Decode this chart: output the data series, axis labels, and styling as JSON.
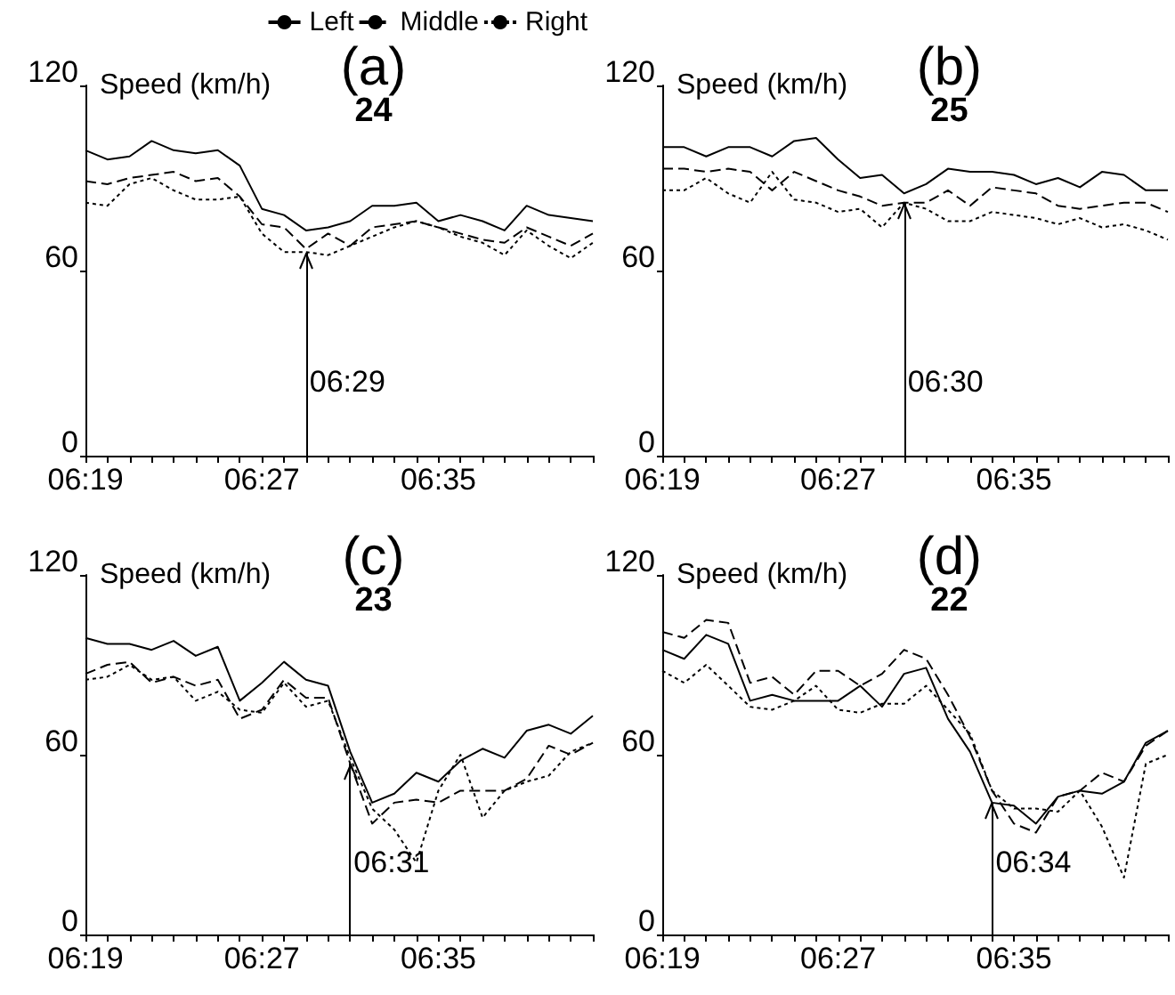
{
  "chart_data": [
    {
      "type": "line",
      "title": "(a)",
      "subtitle": "24",
      "ylabel": "Speed (km/h)",
      "legend": "top",
      "marker": "none",
      "grid": false,
      "x": [
        6.3167,
        6.3333,
        6.35,
        6.3667,
        6.3833,
        6.4,
        6.4167,
        6.4333,
        6.45,
        6.4667,
        6.4833,
        6.5,
        6.5167,
        6.5333,
        6.55,
        6.5667,
        6.5833,
        6.6,
        6.6167,
        6.6333,
        6.65,
        6.6667,
        6.6833,
        6.7
      ],
      "xlim": [
        6.3167,
        6.7
      ],
      "xticks": [
        {
          "value": 6.3167,
          "label": "06:19"
        },
        {
          "value": 6.3333,
          "label": null
        },
        {
          "value": 6.35,
          "label": null
        },
        {
          "value": 6.3667,
          "label": null
        },
        {
          "value": 6.3833,
          "label": null
        },
        {
          "value": 6.4,
          "label": null
        },
        {
          "value": 6.4167,
          "label": null
        },
        {
          "value": 6.4333,
          "label": null
        },
        {
          "value": 6.45,
          "label": "06:27"
        },
        {
          "value": 6.4667,
          "label": null
        },
        {
          "value": 6.4833,
          "label": null
        },
        {
          "value": 6.5,
          "label": null
        },
        {
          "value": 6.5167,
          "label": null
        },
        {
          "value": 6.5333,
          "label": null
        },
        {
          "value": 6.55,
          "label": null
        },
        {
          "value": 6.5667,
          "label": null
        },
        {
          "value": 6.5833,
          "label": "06:35"
        },
        {
          "value": 6.6,
          "label": null
        },
        {
          "value": 6.6167,
          "label": null
        },
        {
          "value": 6.6333,
          "label": null
        },
        {
          "value": 6.65,
          "label": null
        },
        {
          "value": 6.6667,
          "label": null
        },
        {
          "value": 6.6833,
          "label": null
        },
        {
          "value": 6.7,
          "label": null
        }
      ],
      "ylim": [
        0,
        120
      ],
      "yticks": [
        0,
        60,
        120
      ],
      "ref_lines": [
        {
          "axis": "x",
          "value": 6.4833,
          "label": "06:29"
        }
      ],
      "series": [
        {
          "name": "Left",
          "color": "#000000",
          "line_style": "solid",
          "values": [
            99,
            96,
            97,
            102,
            99,
            98,
            99,
            94,
            80,
            78,
            73,
            74,
            76,
            81,
            81,
            82,
            76,
            78,
            76,
            73,
            81,
            78,
            77,
            76
          ]
        },
        {
          "name": "Middle",
          "color": "#000000",
          "line_style": "dashed",
          "values": [
            89,
            88,
            90,
            91,
            92,
            89,
            90,
            84,
            75,
            74,
            67,
            72,
            68,
            74,
            75,
            76,
            74,
            72,
            70,
            69,
            74,
            71,
            68,
            72
          ]
        },
        {
          "name": "Right",
          "color": "#000000",
          "line_style": "dotted",
          "values": [
            82,
            81,
            88,
            90,
            86,
            83,
            83,
            84,
            72,
            66,
            66,
            65,
            68,
            71,
            74,
            76,
            74,
            71,
            69,
            65,
            73,
            68,
            64,
            69
          ]
        }
      ]
    },
    {
      "type": "line",
      "title": "(b)",
      "subtitle": "25",
      "ylabel": "Speed (km/h)",
      "marker": "none",
      "grid": false,
      "x": [
        6.3167,
        6.3333,
        6.35,
        6.3667,
        6.3833,
        6.4,
        6.4167,
        6.4333,
        6.45,
        6.4667,
        6.4833,
        6.5,
        6.5167,
        6.5333,
        6.55,
        6.5667,
        6.5833,
        6.6,
        6.6167,
        6.6333,
        6.65,
        6.6667,
        6.6833,
        6.7
      ],
      "xlim": [
        6.3167,
        6.7
      ],
      "xticks": [
        {
          "value": 6.3167,
          "label": "06:19"
        },
        {
          "value": 6.3333,
          "label": null
        },
        {
          "value": 6.35,
          "label": null
        },
        {
          "value": 6.3667,
          "label": null
        },
        {
          "value": 6.3833,
          "label": null
        },
        {
          "value": 6.4,
          "label": null
        },
        {
          "value": 6.4167,
          "label": null
        },
        {
          "value": 6.4333,
          "label": null
        },
        {
          "value": 6.45,
          "label": "06:27"
        },
        {
          "value": 6.4667,
          "label": null
        },
        {
          "value": 6.4833,
          "label": null
        },
        {
          "value": 6.5,
          "label": null
        },
        {
          "value": 6.5167,
          "label": null
        },
        {
          "value": 6.5333,
          "label": null
        },
        {
          "value": 6.55,
          "label": null
        },
        {
          "value": 6.5667,
          "label": null
        },
        {
          "value": 6.5833,
          "label": "06:35"
        },
        {
          "value": 6.6,
          "label": null
        },
        {
          "value": 6.6167,
          "label": null
        },
        {
          "value": 6.6333,
          "label": null
        },
        {
          "value": 6.65,
          "label": null
        },
        {
          "value": 6.6667,
          "label": null
        },
        {
          "value": 6.6833,
          "label": null
        },
        {
          "value": 6.7,
          "label": null
        }
      ],
      "ylim": [
        0,
        120
      ],
      "yticks": [
        0,
        60,
        120
      ],
      "ref_lines": [
        {
          "axis": "x",
          "value": 6.5,
          "label": "06:30"
        }
      ],
      "series": [
        {
          "color": "#000000",
          "line_style": "solid",
          "values": [
            100,
            100,
            97,
            100,
            100,
            97,
            102,
            103,
            96,
            90,
            91,
            85,
            88,
            93,
            92,
            92,
            91,
            88,
            90,
            87,
            92,
            91,
            86,
            86
          ]
        },
        {
          "color": "#000000",
          "line_style": "dashed",
          "values": [
            93,
            93,
            92,
            93,
            92,
            86,
            92,
            89,
            86,
            84,
            81,
            82,
            82,
            86,
            81,
            87,
            86,
            85,
            81,
            80,
            81,
            82,
            82,
            79
          ]
        },
        {
          "color": "#000000",
          "line_style": "dotted",
          "values": [
            86,
            86,
            90,
            85,
            82,
            92,
            83,
            82,
            79,
            80,
            74,
            82,
            80,
            76,
            76,
            79,
            78,
            77,
            75,
            77,
            74,
            75,
            73,
            70
          ]
        }
      ]
    },
    {
      "type": "line",
      "title": "(c)",
      "subtitle": "23",
      "ylabel": "Speed (km/h)",
      "marker": "none",
      "grid": false,
      "x": [
        6.3167,
        6.3333,
        6.35,
        6.3667,
        6.3833,
        6.4,
        6.4167,
        6.4333,
        6.45,
        6.4667,
        6.4833,
        6.5,
        6.5167,
        6.5333,
        6.55,
        6.5667,
        6.5833,
        6.6,
        6.6167,
        6.6333,
        6.65,
        6.6667,
        6.6833,
        6.7
      ],
      "xlim": [
        6.3167,
        6.7
      ],
      "xticks": [
        {
          "value": 6.3167,
          "label": "06:19"
        },
        {
          "value": 6.3333,
          "label": null
        },
        {
          "value": 6.35,
          "label": null
        },
        {
          "value": 6.3667,
          "label": null
        },
        {
          "value": 6.3833,
          "label": null
        },
        {
          "value": 6.4,
          "label": null
        },
        {
          "value": 6.4167,
          "label": null
        },
        {
          "value": 6.4333,
          "label": null
        },
        {
          "value": 6.45,
          "label": "06:27"
        },
        {
          "value": 6.4667,
          "label": null
        },
        {
          "value": 6.4833,
          "label": null
        },
        {
          "value": 6.5,
          "label": null
        },
        {
          "value": 6.5167,
          "label": null
        },
        {
          "value": 6.5333,
          "label": null
        },
        {
          "value": 6.55,
          "label": null
        },
        {
          "value": 6.5667,
          "label": null
        },
        {
          "value": 6.5833,
          "label": "06:35"
        },
        {
          "value": 6.6,
          "label": null
        },
        {
          "value": 6.6167,
          "label": null
        },
        {
          "value": 6.6333,
          "label": null
        },
        {
          "value": 6.65,
          "label": null
        },
        {
          "value": 6.6667,
          "label": null
        },
        {
          "value": 6.6833,
          "label": null
        },
        {
          "value": 6.7,
          "label": null
        }
      ],
      "ylim": [
        0,
        120
      ],
      "yticks": [
        0,
        60,
        120
      ],
      "ref_lines": [
        {
          "axis": "x",
          "value": 6.516667
        }
      ],
      "annotations": [
        "06:31"
      ],
      "series": [
        {
          "color": "#000000",
          "line_style": "solid",
          "values": [
            99,
            97,
            97,
            95,
            98,
            93,
            96,
            78,
            84,
            91,
            85,
            83,
            61,
            44,
            47,
            54,
            51,
            58,
            62,
            59,
            68,
            70,
            67,
            73
          ]
        },
        {
          "color": "#000000",
          "line_style": "dashed",
          "values": [
            87,
            90,
            91,
            84,
            86,
            83,
            85,
            72,
            75,
            85,
            79,
            79,
            57,
            37,
            44,
            45,
            44,
            48,
            48,
            48,
            52,
            63,
            60,
            64
          ]
        },
        {
          "color": "#000000",
          "line_style": "dotted",
          "values": [
            85,
            86,
            90,
            85,
            86,
            78,
            81,
            75,
            74,
            84,
            76,
            78,
            59,
            42,
            35,
            24,
            48,
            60,
            39,
            48,
            51,
            53,
            61,
            64
          ]
        }
      ]
    },
    {
      "type": "line",
      "title": "(d)",
      "subtitle": "22",
      "ylabel": "Speed (km/h)",
      "marker": "none",
      "grid": false,
      "x": [
        6.3167,
        6.3333,
        6.35,
        6.3667,
        6.3833,
        6.4,
        6.4167,
        6.4333,
        6.45,
        6.4667,
        6.4833,
        6.5,
        6.5167,
        6.5333,
        6.55,
        6.5667,
        6.5833,
        6.6,
        6.6167,
        6.6333,
        6.65,
        6.6667,
        6.6833,
        6.7
      ],
      "xlim": [
        6.3167,
        6.7
      ],
      "xticks": [
        {
          "value": 6.3167,
          "label": "06:19"
        },
        {
          "value": 6.3333,
          "label": null
        },
        {
          "value": 6.35,
          "label": null
        },
        {
          "value": 6.3667,
          "label": null
        },
        {
          "value": 6.3833,
          "label": null
        },
        {
          "value": 6.4,
          "label": null
        },
        {
          "value": 6.4167,
          "label": null
        },
        {
          "value": 6.4333,
          "label": null
        },
        {
          "value": 6.45,
          "label": "06:27"
        },
        {
          "value": 6.4667,
          "label": null
        },
        {
          "value": 6.4833,
          "label": null
        },
        {
          "value": 6.5,
          "label": null
        },
        {
          "value": 6.5167,
          "label": null
        },
        {
          "value": 6.5333,
          "label": null
        },
        {
          "value": 6.55,
          "label": null
        },
        {
          "value": 6.5667,
          "label": null
        },
        {
          "value": 6.5833,
          "label": "06:35"
        },
        {
          "value": 6.6,
          "label": null
        },
        {
          "value": 6.6167,
          "label": null
        },
        {
          "value": 6.6333,
          "label": null
        },
        {
          "value": 6.65,
          "label": null
        },
        {
          "value": 6.6667,
          "label": null
        },
        {
          "value": 6.6833,
          "label": null
        },
        {
          "value": 6.7,
          "label": null
        }
      ],
      "ylim": [
        0,
        120
      ],
      "yticks": [
        0,
        60,
        120
      ],
      "ref_lines": [
        {
          "axis": "x",
          "value": 6.566667
        }
      ],
      "annotations": [
        "06:34"
      ],
      "series": [
        {
          "color": "#000000",
          "line_style": "solid",
          "values": [
            95,
            92,
            100,
            97,
            78,
            80,
            78,
            78,
            78,
            83,
            76,
            87,
            89,
            72,
            61,
            44,
            43,
            37,
            46,
            48,
            47,
            51,
            64,
            68
          ]
        },
        {
          "color": "#000000",
          "line_style": "dashed",
          "values": [
            101,
            99,
            105,
            104,
            84,
            86,
            80,
            88,
            88,
            83,
            87,
            95,
            92,
            80,
            66,
            48,
            37,
            34,
            46,
            48,
            54,
            51,
            63,
            68
          ]
        },
        {
          "color": "#000000",
          "line_style": "dotted",
          "values": [
            88,
            84,
            90,
            83,
            76,
            75,
            78,
            83,
            75,
            74,
            77,
            77,
            83,
            75,
            67,
            48,
            42,
            42,
            41,
            48,
            36,
            19,
            57,
            60
          ]
        }
      ]
    }
  ]
}
